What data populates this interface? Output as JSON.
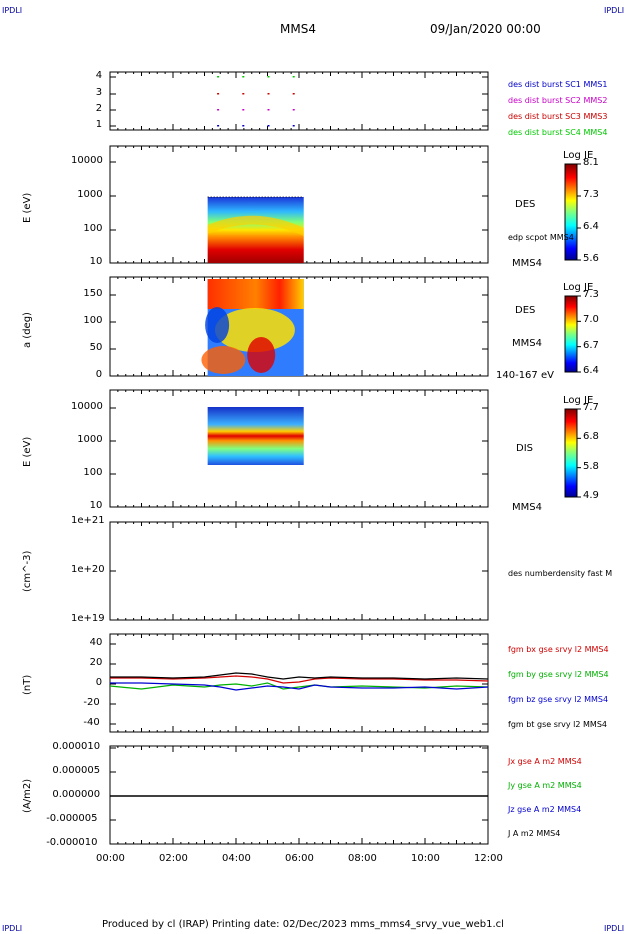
{
  "corners": {
    "tl": "IPDLI",
    "tr": "IPDLI",
    "bl": "IPDLI",
    "br": "IPDLI"
  },
  "header": {
    "spacecraft": "MMS4",
    "date": "09/Jan/2020 00:00"
  },
  "footer": {
    "text": "Produced by cl (IRAP)   Printing date: 02/Dec/2023   mms_mms4_srvy_vue_web1.cl"
  },
  "colors": {
    "mms1": "#0000c8",
    "mms2": "#c800c8",
    "mms3": "#c80000",
    "mms4": "#00c800",
    "bx": "#d00000",
    "by": "#00b000",
    "bz": "#0000d0",
    "bt": "#000000"
  },
  "chart_data": [
    {
      "type": "scatter",
      "panel": "availability",
      "yticks": [
        "4",
        "3",
        "2",
        "1"
      ],
      "legend": [
        "des dist burst SC1 MMS1",
        "des dist burst SC2 MMS2",
        "des dist burst SC3 MMS3",
        "des dist burst SC4 MMS4"
      ]
    },
    {
      "type": "heatmap",
      "panel": "DES energy spectrogram",
      "ylabel": "E (eV)",
      "yscale": "log",
      "yticks": [
        "10000",
        "1000",
        "100",
        "10"
      ],
      "label": "DES",
      "annotation": "edp scpot MMS4",
      "spacecraft": "MMS4",
      "colorbar": {
        "title": "Log JE",
        "ticks": [
          "8.1",
          "7.3",
          "6.4",
          "5.6"
        ]
      },
      "x_range": [
        "03:05",
        "06:10"
      ],
      "y_range": [
        10,
        1000
      ]
    },
    {
      "type": "heatmap",
      "panel": "DES pitch angle",
      "ylabel": "a (deg)",
      "ylim": [
        0,
        180
      ],
      "yticks": [
        "150",
        "100",
        "50",
        "0"
      ],
      "label": "DES",
      "spacecraft": "MMS4",
      "energy": "140-167 eV",
      "colorbar": {
        "title": "Log JE",
        "ticks": [
          "7.3",
          "7.0",
          "6.7",
          "6.4"
        ]
      }
    },
    {
      "type": "heatmap",
      "panel": "DIS energy spectrogram",
      "ylabel": "E (eV)",
      "yscale": "log",
      "yticks": [
        "10000",
        "1000",
        "100",
        "10"
      ],
      "label": "DIS",
      "spacecraft": "MMS4",
      "colorbar": {
        "title": "Log JE",
        "ticks": [
          "7.7",
          "6.8",
          "5.8",
          "4.9"
        ]
      }
    },
    {
      "type": "line",
      "panel": "density",
      "ylabel": "(cm^-3)",
      "yscale": "log",
      "yticks": [
        "1e+21",
        "1e+20",
        "1e+19"
      ],
      "legend": [
        "des numberdensity fast M"
      ]
    },
    {
      "type": "line",
      "panel": "magnetic field",
      "ylabel": "(nT)",
      "ylim": [
        -50,
        50
      ],
      "yticks": [
        "40",
        "20",
        "0",
        "-20",
        "-40"
      ],
      "legend": [
        "fgm bx gse srvy l2 MMS4",
        "fgm by gse srvy l2 MMS4",
        "fgm bz gse srvy l2 MMS4",
        "fgm bt gse srvy l2 MMS4"
      ],
      "x": [
        0,
        1,
        2,
        3,
        3.5,
        4,
        4.5,
        5,
        5.5,
        6,
        6.5,
        7,
        8,
        9,
        10,
        11,
        12
      ],
      "series": [
        {
          "name": "fgm bx gse srvy l2 MMS4",
          "values": [
            6,
            6,
            5,
            6,
            7,
            8,
            7,
            5,
            1,
            2,
            5,
            6,
            5,
            5,
            4,
            4,
            3
          ]
        },
        {
          "name": "fgm by gse srvy l2 MMS4",
          "values": [
            -2,
            -5,
            -1,
            -3,
            -1,
            0,
            -2,
            1,
            -5,
            -3,
            -1,
            -3,
            -2,
            -3,
            -4,
            -2,
            -3
          ]
        },
        {
          "name": "fgm bz gse srvy l2 MMS4",
          "values": [
            1,
            1,
            0,
            -1,
            -3,
            -6,
            -4,
            -2,
            -3,
            -5,
            -1,
            -3,
            -4,
            -4,
            -3,
            -5,
            -3
          ]
        },
        {
          "name": "fgm bt gse srvy l2 MMS4",
          "values": [
            7,
            7,
            6,
            7,
            9,
            11,
            10,
            7,
            5,
            7,
            6,
            7,
            6,
            6,
            5,
            6,
            5
          ]
        }
      ]
    },
    {
      "type": "line",
      "panel": "current",
      "ylabel": "(A/m2)",
      "ylim": [
        -1e-05,
        1e-05
      ],
      "yticks": [
        "0.000010",
        "0.000005",
        "0.000000",
        "-0.000005",
        "-0.000010"
      ],
      "legend": [
        "Jx gse A m2 MMS4",
        "Jy gse A m2 MMS4",
        "Jz gse A m2 MMS4",
        "J A m2 MMS4"
      ],
      "x": [
        0,
        12
      ],
      "series": [
        {
          "name": "J A m2 MMS4",
          "values": [
            0,
            0
          ]
        }
      ],
      "xticks": [
        "00:00",
        "02:00",
        "04:00",
        "06:00",
        "08:00",
        "10:00",
        "12:00"
      ]
    }
  ]
}
